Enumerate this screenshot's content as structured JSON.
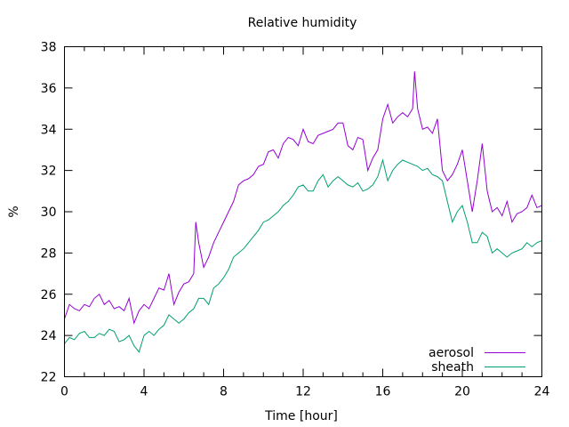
{
  "chart_data": {
    "type": "line",
    "title": "Relative humidity",
    "xlabel": "Time [hour]",
    "ylabel": "%",
    "xlim": [
      0,
      24
    ],
    "ylim": [
      22,
      38
    ],
    "xticks": [
      "0",
      "4",
      "8",
      "12",
      "16",
      "20",
      "24"
    ],
    "xtick_values": [
      0,
      4,
      8,
      12,
      16,
      20,
      24
    ],
    "yticks": [
      "22",
      "24",
      "26",
      "28",
      "30",
      "32",
      "34",
      "36",
      "38"
    ],
    "ytick_values": [
      22,
      24,
      26,
      28,
      30,
      32,
      34,
      36,
      38
    ],
    "grid": false,
    "legend_position": "bottom-right",
    "series": [
      {
        "name": "aerosol",
        "color": "#9400d3",
        "x": [
          0,
          0.25,
          0.5,
          0.75,
          1,
          1.25,
          1.5,
          1.75,
          2,
          2.25,
          2.5,
          2.75,
          3,
          3.25,
          3.5,
          3.75,
          4,
          4.25,
          4.5,
          4.75,
          5,
          5.25,
          5.5,
          5.75,
          6,
          6.25,
          6.5,
          6.6,
          6.75,
          7,
          7.25,
          7.5,
          7.75,
          8,
          8.25,
          8.5,
          8.75,
          9,
          9.25,
          9.5,
          9.75,
          10,
          10.25,
          10.5,
          10.75,
          11,
          11.25,
          11.5,
          11.75,
          12,
          12.25,
          12.5,
          12.75,
          13,
          13.25,
          13.5,
          13.75,
          14,
          14.25,
          14.5,
          14.75,
          15,
          15.25,
          15.5,
          15.75,
          16,
          16.25,
          16.5,
          16.75,
          17,
          17.25,
          17.5,
          17.6,
          17.75,
          18,
          18.25,
          18.5,
          18.75,
          19,
          19.25,
          19.5,
          19.75,
          20,
          20.25,
          20.5,
          20.75,
          21,
          21.25,
          21.5,
          21.75,
          22,
          22.25,
          22.5,
          22.75,
          23,
          23.25,
          23.5,
          23.75,
          24
        ],
        "y": [
          24.8,
          25.5,
          25.3,
          25.2,
          25.5,
          25.4,
          25.8,
          26.0,
          25.5,
          25.7,
          25.3,
          25.4,
          25.2,
          25.8,
          24.6,
          25.2,
          25.5,
          25.3,
          25.8,
          26.3,
          26.2,
          27.0,
          25.5,
          26.1,
          26.5,
          26.6,
          27.0,
          29.5,
          28.5,
          27.3,
          27.8,
          28.5,
          29.0,
          29.5,
          30.0,
          30.5,
          31.3,
          31.5,
          31.6,
          31.8,
          32.2,
          32.3,
          32.9,
          33.0,
          32.6,
          33.3,
          33.6,
          33.5,
          33.2,
          34.0,
          33.4,
          33.3,
          33.7,
          33.8,
          33.9,
          34.0,
          34.3,
          34.3,
          33.2,
          33.0,
          33.6,
          33.5,
          32.0,
          32.6,
          33.0,
          34.5,
          35.2,
          34.3,
          34.6,
          34.8,
          34.6,
          35.0,
          36.8,
          35.0,
          34.0,
          34.1,
          33.8,
          34.5,
          32.0,
          31.5,
          31.8,
          32.3,
          33.0,
          31.5,
          30.0,
          31.5,
          33.3,
          31.0,
          30.0,
          30.2,
          29.8,
          30.5,
          29.5,
          29.9,
          30.0,
          30.2,
          30.8,
          30.2,
          30.3
        ]
      },
      {
        "name": "sheath",
        "color": "#009e73",
        "x": [
          0,
          0.25,
          0.5,
          0.75,
          1,
          1.25,
          1.5,
          1.75,
          2,
          2.25,
          2.5,
          2.75,
          3,
          3.25,
          3.5,
          3.75,
          4,
          4.25,
          4.5,
          4.75,
          5,
          5.25,
          5.5,
          5.75,
          6,
          6.25,
          6.5,
          6.75,
          7,
          7.25,
          7.5,
          7.75,
          8,
          8.25,
          8.5,
          8.75,
          9,
          9.25,
          9.5,
          9.75,
          10,
          10.25,
          10.5,
          10.75,
          11,
          11.25,
          11.5,
          11.75,
          12,
          12.25,
          12.5,
          12.75,
          13,
          13.25,
          13.5,
          13.75,
          14,
          14.25,
          14.5,
          14.75,
          15,
          15.25,
          15.5,
          15.75,
          16,
          16.25,
          16.5,
          16.75,
          17,
          17.25,
          17.5,
          17.75,
          18,
          18.25,
          18.5,
          18.75,
          19,
          19.25,
          19.5,
          19.75,
          20,
          20.25,
          20.5,
          20.75,
          21,
          21.25,
          21.5,
          21.75,
          22,
          22.25,
          22.5,
          22.75,
          23,
          23.25,
          23.5,
          23.75,
          24
        ],
        "y": [
          23.6,
          23.9,
          23.8,
          24.1,
          24.2,
          23.9,
          23.9,
          24.1,
          24.0,
          24.3,
          24.2,
          23.7,
          23.8,
          24.0,
          23.5,
          23.2,
          24.0,
          24.2,
          24.0,
          24.3,
          24.5,
          25.0,
          24.8,
          24.6,
          24.8,
          25.1,
          25.3,
          25.8,
          25.8,
          25.5,
          26.3,
          26.5,
          26.8,
          27.2,
          27.8,
          28.0,
          28.2,
          28.5,
          28.8,
          29.1,
          29.5,
          29.6,
          29.8,
          30.0,
          30.3,
          30.5,
          30.8,
          31.2,
          31.3,
          31.0,
          31.0,
          31.5,
          31.8,
          31.2,
          31.5,
          31.7,
          31.5,
          31.3,
          31.2,
          31.4,
          31.0,
          31.1,
          31.3,
          31.7,
          32.5,
          31.5,
          32.0,
          32.3,
          32.5,
          32.4,
          32.3,
          32.2,
          32.0,
          32.1,
          31.8,
          31.7,
          31.5,
          30.5,
          29.5,
          30.0,
          30.3,
          29.5,
          28.5,
          28.5,
          29.0,
          28.8,
          28.0,
          28.2,
          28.0,
          27.8,
          28.0,
          28.1,
          28.2,
          28.5,
          28.3,
          28.5,
          28.6
        ]
      }
    ]
  }
}
